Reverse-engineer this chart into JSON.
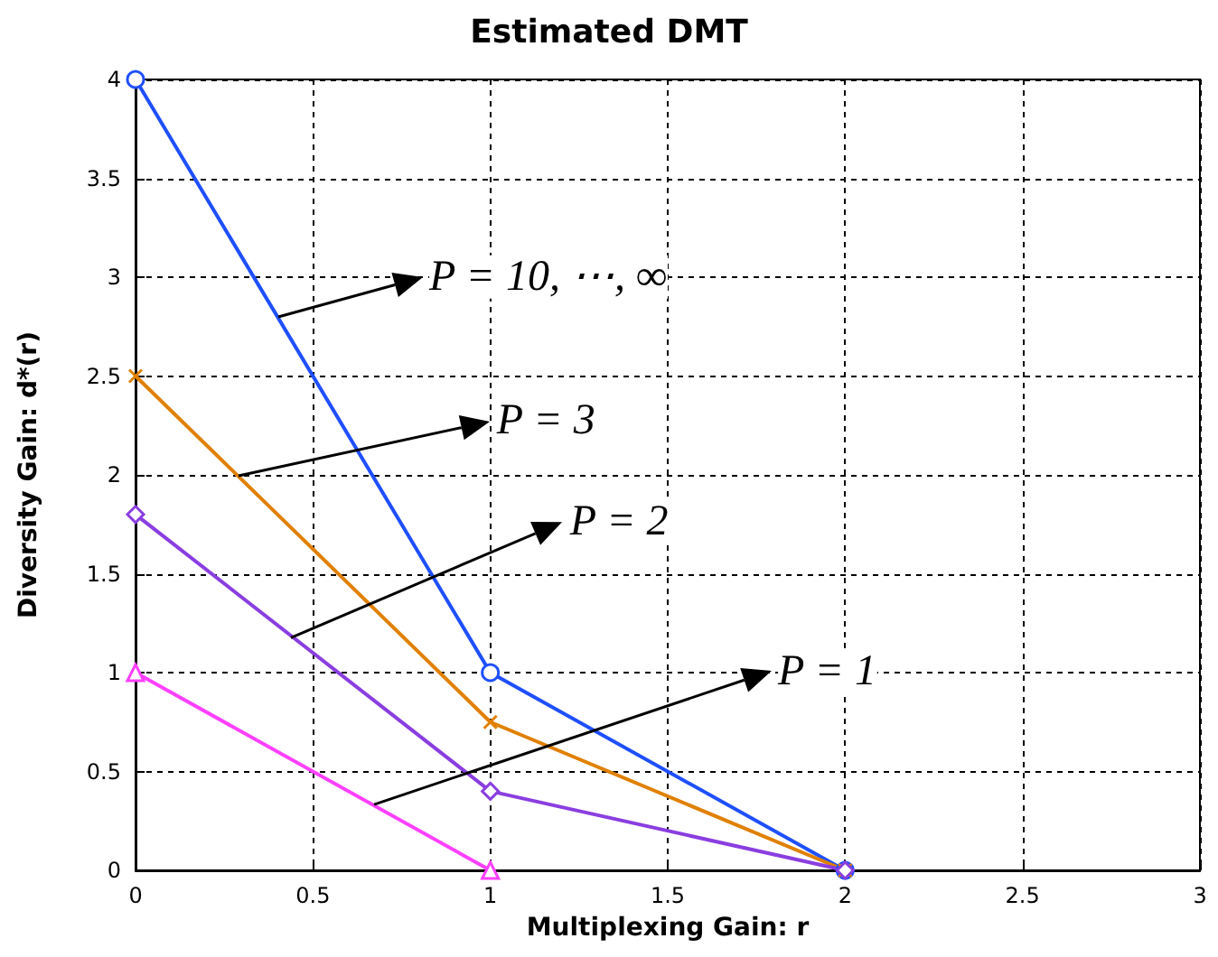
{
  "chart_data": {
    "type": "line",
    "title": "Estimated DMT",
    "xlabel": "Multiplexing Gain: r",
    "ylabel": "Diversity Gain: d*(r)",
    "xlim": [
      0,
      3
    ],
    "xticks": [
      0,
      0.5,
      1,
      1.5,
      2,
      2.5,
      3
    ],
    "ylim": [
      0,
      4
    ],
    "yticks": [
      0,
      0.5,
      1,
      1.5,
      2,
      2.5,
      3,
      3.5,
      4
    ],
    "grid": true,
    "line_style": "solid",
    "series": [
      {
        "color": "#1f4fff",
        "marker": "circle",
        "x": [
          0,
          1,
          2
        ],
        "values": [
          4,
          1,
          0
        ]
      },
      {
        "color": "#e08000",
        "marker": "cross",
        "x": [
          0,
          1,
          2
        ],
        "values": [
          2.5,
          0.75,
          0
        ]
      },
      {
        "color": "#8a3ee0",
        "marker": "diamond",
        "x": [
          0,
          1,
          2
        ],
        "values": [
          1.8,
          0.4,
          0
        ]
      },
      {
        "color": "#ff40ff",
        "marker": "triangle",
        "x": [
          0,
          1
        ],
        "values": [
          1,
          0
        ]
      }
    ],
    "annotations": [
      {
        "text": "P = 10, ⋯, ∞",
        "x": 0.4,
        "y": 2.8
      },
      {
        "text": "P = 3",
        "x": 0.29,
        "y": 2
      },
      {
        "text": "P = 2",
        "x": 0.44,
        "y": 1.18
      },
      {
        "text": "P = 1",
        "x": 0.67,
        "y": 0.33
      }
    ]
  }
}
